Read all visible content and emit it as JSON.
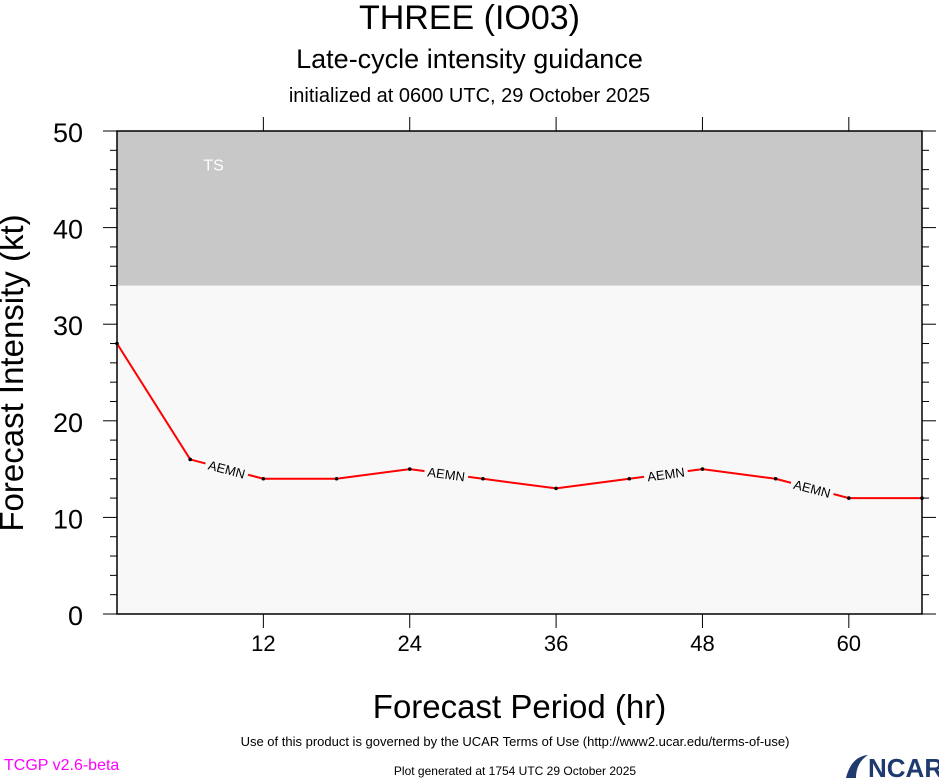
{
  "titles": {
    "line1": "THREE (IO03)",
    "line2": "Late-cycle intensity guidance",
    "line3": "initialized at 0600 UTC, 29 October 2025"
  },
  "footer": {
    "terms": "Use of this product is governed by the UCAR Terms of Use (http://www2.ucar.edu/terms-of-use)",
    "generated": "Plot generated at 1754 UTC   29 October 2025",
    "version": "TCGP v2.6-beta",
    "logo_text": "NCAR"
  },
  "chart_data": {
    "type": "line",
    "xlabel": "Forecast Period (hr)",
    "ylabel": "Forecast Intensity (kt)",
    "xlim": [
      0,
      66
    ],
    "ylim": [
      0,
      50
    ],
    "xticks": [
      12,
      24,
      36,
      48,
      60
    ],
    "yticks": [
      0,
      10,
      20,
      30,
      40,
      50
    ],
    "bands": [
      {
        "label": "TS",
        "from": 34,
        "to": 50,
        "color": "#c8c8c8"
      }
    ],
    "background_color": "#f8f8f8",
    "series": [
      {
        "name": "AEMN",
        "color": "#ff0000",
        "x": [
          0,
          6,
          12,
          18,
          24,
          30,
          36,
          42,
          48,
          54,
          60,
          66
        ],
        "y": [
          28,
          16,
          14,
          14,
          15,
          14,
          13,
          14,
          15,
          14,
          12,
          12
        ],
        "label_at_segments": [
          1,
          4,
          7,
          9
        ]
      }
    ]
  }
}
